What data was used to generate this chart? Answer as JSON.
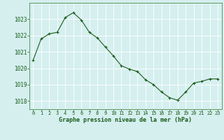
{
  "x": [
    0,
    1,
    2,
    3,
    4,
    5,
    6,
    7,
    8,
    9,
    10,
    11,
    12,
    13,
    14,
    15,
    16,
    17,
    18,
    19,
    20,
    21,
    22,
    23
  ],
  "y": [
    1020.5,
    1021.8,
    1022.1,
    1022.2,
    1023.1,
    1023.4,
    1022.95,
    1022.2,
    1021.85,
    1021.3,
    1020.75,
    1020.15,
    1019.95,
    1019.8,
    1019.3,
    1019.0,
    1018.55,
    1018.2,
    1018.05,
    1018.55,
    1019.1,
    1019.2,
    1019.35,
    1019.35
  ],
  "xlabel": "Graphe pression niveau de la mer (hPa)",
  "ylim": [
    1017.5,
    1024.0
  ],
  "xlim": [
    -0.5,
    23.5
  ],
  "yticks": [
    1018,
    1019,
    1020,
    1021,
    1022,
    1023
  ],
  "xticks": [
    0,
    1,
    2,
    3,
    4,
    5,
    6,
    7,
    8,
    9,
    10,
    11,
    12,
    13,
    14,
    15,
    16,
    17,
    18,
    19,
    20,
    21,
    22,
    23
  ],
  "line_color": "#1a5c1a",
  "marker": "+",
  "bg_color": "#d5efef",
  "grid_color": "#ffffff",
  "plot_bg": "#d5efef",
  "xlabel_color": "#1a5c1a",
  "tick_color": "#1a5c1a",
  "border_color": "#4a8a4a"
}
